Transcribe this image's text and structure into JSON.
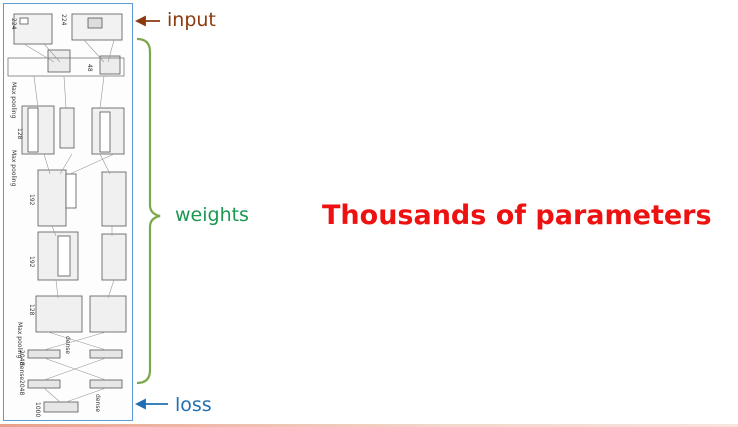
{
  "labels": {
    "input": "input",
    "weights": "weights",
    "loss": "loss"
  },
  "headline": "Thousands of parameters",
  "colors": {
    "input": "#8b3a0f",
    "weights": "#1a9850",
    "loss": "#1f6fb2",
    "headline": "#ee1111",
    "network_border": "#5b9bd5"
  },
  "network": {
    "input_sizes": [
      "224",
      "224"
    ],
    "blocks": [
      "48",
      "128",
      "192",
      "192",
      "128"
    ],
    "pooling_labels": [
      "Max pooling",
      "Max pooling",
      "Max pooling"
    ],
    "dense_sizes": [
      "2048",
      "2048",
      "1000"
    ],
    "dense_labels": [
      "dense",
      "dense",
      "dense"
    ]
  }
}
